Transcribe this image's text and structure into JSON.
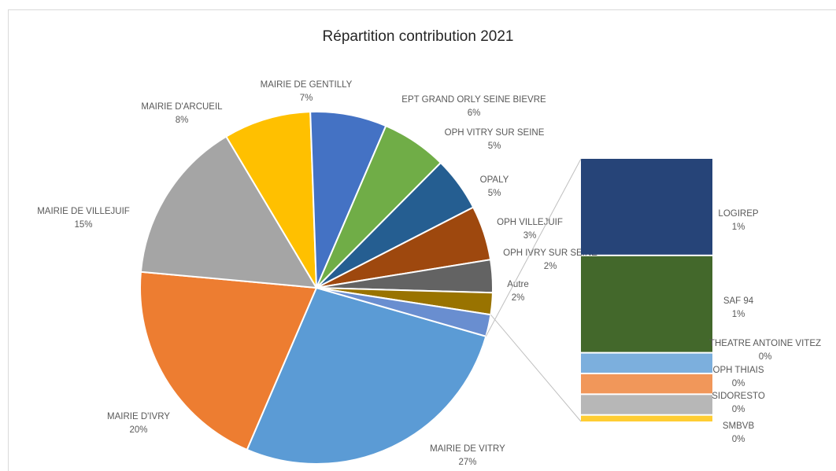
{
  "chart_data": {
    "type": "pie",
    "subtype": "bar-of-pie",
    "title": "Répartition contribution 2021",
    "pie_slices": [
      {
        "label": "MAIRIE DE VITRY",
        "value": 27,
        "pct_label": "27%",
        "color": "#5B9BD5"
      },
      {
        "label": "MAIRIE D'IVRY",
        "value": 20,
        "pct_label": "20%",
        "color": "#ED7D31"
      },
      {
        "label": "MAIRIE DE VILLEJUIF",
        "value": 15,
        "pct_label": "15%",
        "color": "#A5A5A5"
      },
      {
        "label": "MAIRIE D'ARCUEIL",
        "value": 8,
        "pct_label": "8%",
        "color": "#FFC000"
      },
      {
        "label": "MAIRIE DE GENTILLY",
        "value": 7,
        "pct_label": "7%",
        "color": "#4472C4"
      },
      {
        "label": "EPT GRAND ORLY SEINE BIEVRE",
        "value": 6,
        "pct_label": "6%",
        "color": "#70AD47"
      },
      {
        "label": "OPH VITRY SUR SEINE",
        "value": 5,
        "pct_label": "5%",
        "color": "#255E91"
      },
      {
        "label": "OPALY",
        "value": 5,
        "pct_label": "5%",
        "color": "#9E480E"
      },
      {
        "label": "OPH VILLEJUIF",
        "value": 3,
        "pct_label": "3%",
        "color": "#636363"
      },
      {
        "label": "OPH IVRY SUR SEINE",
        "value": 2,
        "pct_label": "2%",
        "color": "#997300"
      },
      {
        "label": "Autre",
        "value": 2,
        "pct_label": "2%",
        "color": "#698ED0"
      }
    ],
    "bar_segments": [
      {
        "label": "LOGIREP",
        "value": 1,
        "pct_label": "1%",
        "color": "#264478"
      },
      {
        "label": "SAF 94",
        "value": 1,
        "pct_label": "1%",
        "color": "#43682B"
      },
      {
        "label": "THEATRE ANTOINE VITEZ",
        "value": 0.2,
        "pct_label": "0%",
        "color": "#7CAFDD"
      },
      {
        "label": "OPH THIAIS",
        "value": 0.2,
        "pct_label": "0%",
        "color": "#F1975A"
      },
      {
        "label": "SIDORESTO",
        "value": 0.2,
        "pct_label": "0%",
        "color": "#B7B7B7"
      },
      {
        "label": "SMBVB",
        "value": 0.06,
        "pct_label": "0%",
        "color": "#FFCD33"
      }
    ]
  }
}
